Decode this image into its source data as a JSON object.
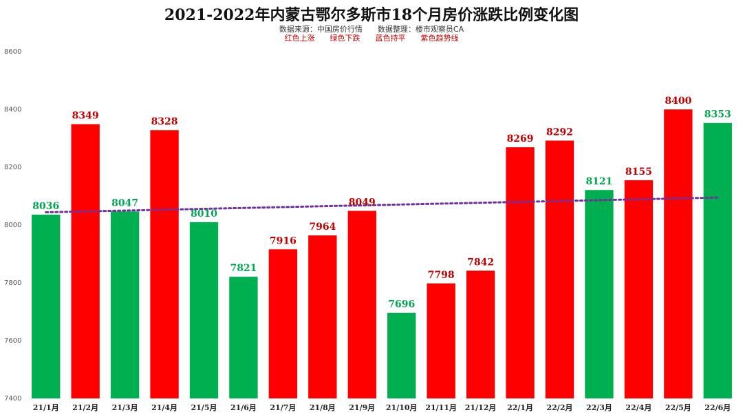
{
  "chart_data": {
    "type": "bar",
    "title": "2021-2022年内蒙古鄂尔多斯市18个月房价涨跌比例变化图",
    "subtitle": "数据来源：中国房价行情　　数据整理：楼市观察员CA",
    "legend": "红色上涨　　绿色下跌　　蓝色持平　　紫色趋势线",
    "categories": [
      "21/1月",
      "21/2月",
      "21/3月",
      "21/4月",
      "21/5月",
      "21/6月",
      "21/7月",
      "21/8月",
      "21/9月",
      "21/10月",
      "21/11月",
      "21/12月",
      "22/1月",
      "22/2月",
      "22/3月",
      "22/4月",
      "22/5月",
      "22/6月"
    ],
    "values": [
      8036,
      8349,
      8047,
      8328,
      8010,
      7821,
      7916,
      7964,
      8049,
      7696,
      7798,
      7842,
      8269,
      8292,
      8121,
      8155,
      8400,
      8353
    ],
    "trend": [
      "down",
      "up",
      "down",
      "up",
      "down",
      "down",
      "up",
      "up",
      "up",
      "down",
      "up",
      "up",
      "up",
      "up",
      "down",
      "up",
      "up",
      "down"
    ],
    "yticks": [
      7400,
      7600,
      7800,
      8000,
      8200,
      8400,
      8600
    ],
    "ylim": [
      7400,
      8600
    ],
    "trendline": {
      "start": 8044,
      "end": 8095
    },
    "colors": {
      "up": "#ff0000",
      "down": "#00b050",
      "up_label": "#c00000",
      "down_label": "#00a651",
      "trendline": "#7030a0"
    }
  }
}
